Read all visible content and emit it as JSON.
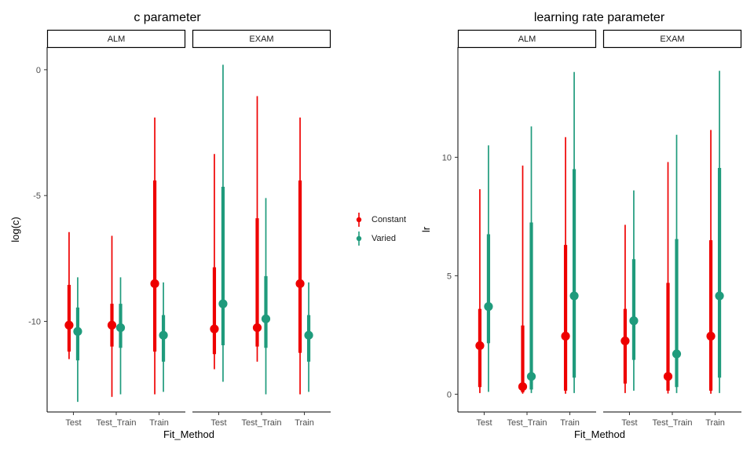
{
  "colors": {
    "Constant": "#ee0000",
    "Varied": "#1f9b7c"
  },
  "legend": {
    "items": [
      "Constant",
      "Varied"
    ]
  },
  "chart_data": [
    {
      "type": "pointrange",
      "title": "c parameter",
      "xlabel": "Fit_Method",
      "ylabel": "log(c)",
      "categories": [
        "Test",
        "Test_Train",
        "Train"
      ],
      "facets": [
        "ALM",
        "EXAM"
      ],
      "ylim": [
        -13.6,
        0.9
      ],
      "yticks": [
        -10,
        -5,
        0
      ],
      "ytick_labels": [
        "-10",
        "-5",
        "0"
      ],
      "grid": false,
      "legend_position": "right",
      "series": [
        {
          "name": "Constant",
          "points": [
            {
              "facet": "ALM",
              "x": "Test",
              "y": -10.15,
              "inner": [
                -11.2,
                -8.55
              ],
              "outer": [
                -11.5,
                -6.45
              ]
            },
            {
              "facet": "ALM",
              "x": "Test_Train",
              "y": -10.15,
              "inner": [
                -11.0,
                -9.3
              ],
              "outer": [
                -13.0,
                -6.6
              ]
            },
            {
              "facet": "ALM",
              "x": "Train",
              "y": -8.5,
              "inner": [
                -11.2,
                -4.4
              ],
              "outer": [
                -12.9,
                -1.9
              ]
            },
            {
              "facet": "EXAM",
              "x": "Test",
              "y": -10.3,
              "inner": [
                -11.3,
                -7.85
              ],
              "outer": [
                -11.9,
                -3.35
              ]
            },
            {
              "facet": "EXAM",
              "x": "Test_Train",
              "y": -10.25,
              "inner": [
                -11.0,
                -5.9
              ],
              "outer": [
                -11.6,
                -1.05
              ]
            },
            {
              "facet": "EXAM",
              "x": "Train",
              "y": -8.5,
              "inner": [
                -11.25,
                -4.4
              ],
              "outer": [
                -12.9,
                -1.9
              ]
            }
          ]
        },
        {
          "name": "Varied",
          "points": [
            {
              "facet": "ALM",
              "x": "Test",
              "y": -10.4,
              "inner": [
                -11.55,
                -9.45
              ],
              "outer": [
                -13.2,
                -8.25
              ]
            },
            {
              "facet": "ALM",
              "x": "Test_Train",
              "y": -10.25,
              "inner": [
                -11.05,
                -9.3
              ],
              "outer": [
                -12.9,
                -8.25
              ]
            },
            {
              "facet": "ALM",
              "x": "Train",
              "y": -10.55,
              "inner": [
                -11.6,
                -9.75
              ],
              "outer": [
                -12.8,
                -8.45
              ]
            },
            {
              "facet": "EXAM",
              "x": "Test",
              "y": -9.3,
              "inner": [
                -10.95,
                -4.65
              ],
              "outer": [
                -12.4,
                0.2
              ]
            },
            {
              "facet": "EXAM",
              "x": "Test_Train",
              "y": -9.9,
              "inner": [
                -11.05,
                -8.2
              ],
              "outer": [
                -12.9,
                -5.1
              ]
            },
            {
              "facet": "EXAM",
              "x": "Train",
              "y": -10.55,
              "inner": [
                -11.6,
                -9.75
              ],
              "outer": [
                -12.8,
                -8.45
              ]
            }
          ]
        }
      ]
    },
    {
      "type": "pointrange",
      "title": "learning rate parameter",
      "xlabel": "Fit_Method",
      "ylabel": "lr",
      "categories": [
        "Test",
        "Test_Train",
        "Train"
      ],
      "facets": [
        "ALM",
        "EXAM"
      ],
      "ylim": [
        -0.75,
        14.65
      ],
      "yticks": [
        0,
        5,
        10
      ],
      "ytick_labels": [
        "0",
        "5",
        "10"
      ],
      "grid": false,
      "legend_position": "right",
      "series": [
        {
          "name": "Constant",
          "points": [
            {
              "facet": "ALM",
              "x": "Test",
              "y": 2.05,
              "inner": [
                0.3,
                3.6
              ],
              "outer": [
                0.05,
                8.65
              ]
            },
            {
              "facet": "ALM",
              "x": "Test_Train",
              "y": 0.32,
              "inner": [
                0.08,
                2.9
              ],
              "outer": [
                0.02,
                9.65
              ]
            },
            {
              "facet": "ALM",
              "x": "Train",
              "y": 2.45,
              "inner": [
                0.15,
                6.3
              ],
              "outer": [
                0.02,
                10.85
              ]
            },
            {
              "facet": "EXAM",
              "x": "Test",
              "y": 2.25,
              "inner": [
                0.45,
                3.6
              ],
              "outer": [
                0.05,
                7.15
              ]
            },
            {
              "facet": "EXAM",
              "x": "Test_Train",
              "y": 0.75,
              "inner": [
                0.15,
                4.7
              ],
              "outer": [
                0.03,
                9.8
              ]
            },
            {
              "facet": "EXAM",
              "x": "Train",
              "y": 2.45,
              "inner": [
                0.15,
                6.5
              ],
              "outer": [
                0.02,
                11.15
              ]
            }
          ]
        },
        {
          "name": "Varied",
          "points": [
            {
              "facet": "ALM",
              "x": "Test",
              "y": 3.7,
              "inner": [
                2.15,
                6.75
              ],
              "outer": [
                0.1,
                10.5
              ]
            },
            {
              "facet": "ALM",
              "x": "Test_Train",
              "y": 0.75,
              "inner": [
                0.2,
                7.25
              ],
              "outer": [
                0.05,
                11.3
              ]
            },
            {
              "facet": "ALM",
              "x": "Train",
              "y": 4.15,
              "inner": [
                0.7,
                9.5
              ],
              "outer": [
                0.05,
                13.6
              ]
            },
            {
              "facet": "EXAM",
              "x": "Test",
              "y": 3.1,
              "inner": [
                1.45,
                5.7
              ],
              "outer": [
                0.15,
                8.6
              ]
            },
            {
              "facet": "EXAM",
              "x": "Test_Train",
              "y": 1.7,
              "inner": [
                0.3,
                6.55
              ],
              "outer": [
                0.05,
                10.95
              ]
            },
            {
              "facet": "EXAM",
              "x": "Train",
              "y": 4.15,
              "inner": [
                0.7,
                9.55
              ],
              "outer": [
                0.05,
                13.65
              ]
            }
          ]
        }
      ]
    }
  ]
}
